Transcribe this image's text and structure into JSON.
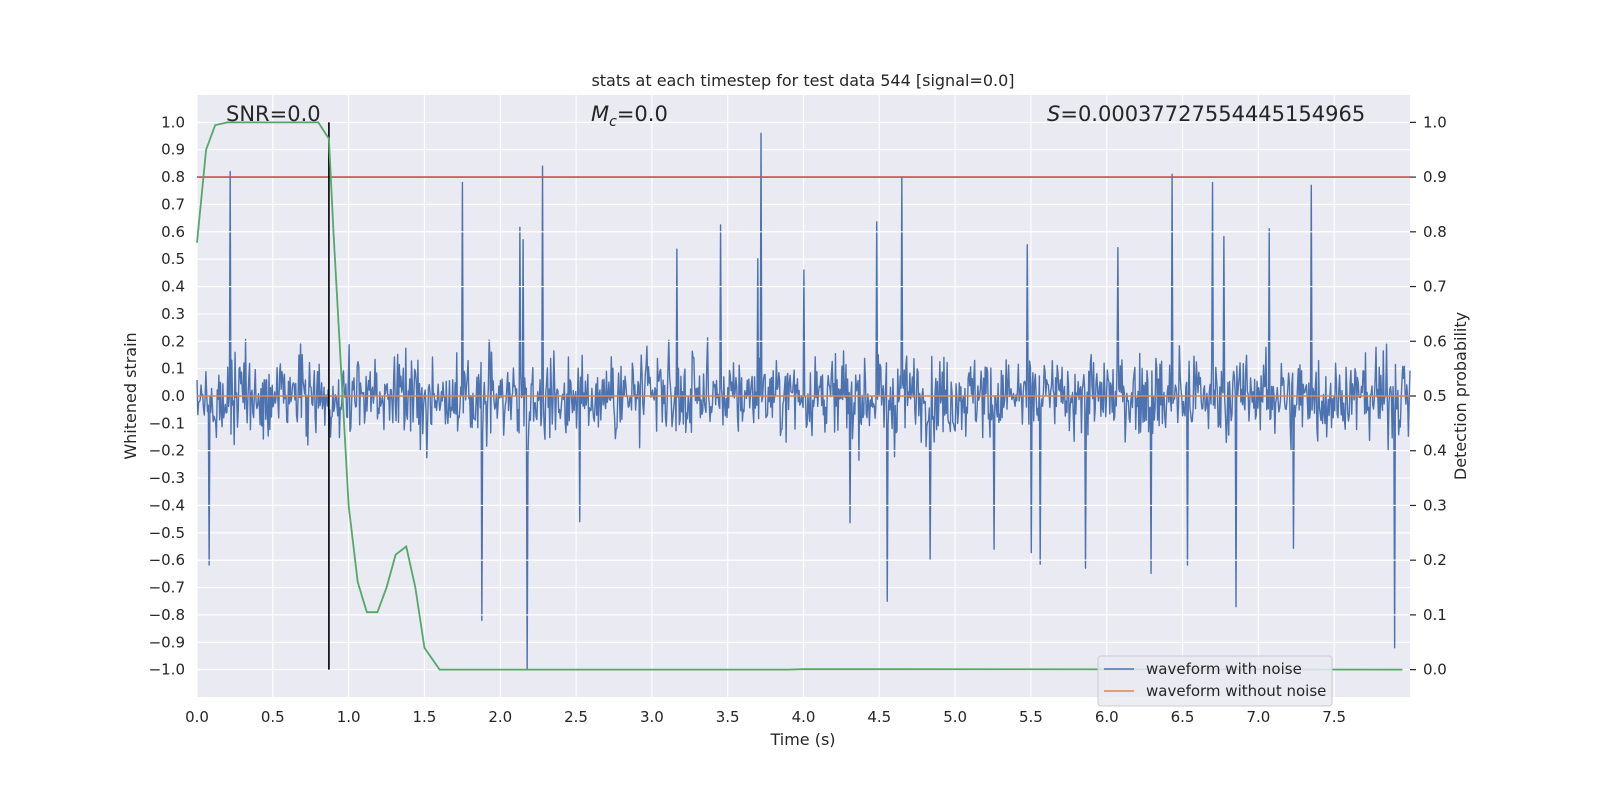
{
  "chart_data": {
    "type": "line",
    "title": "stats at each timestep for test data 544 [signal=0.0]",
    "xlabel": "Time (s)",
    "ylabel_left": "Whitened strain",
    "ylabel_right": "Detection probability",
    "xlim": [
      0.0,
      8.0
    ],
    "ylim_left": [
      -1.1,
      1.1
    ],
    "ylim_right": [
      -0.05,
      1.05
    ],
    "x_ticks": [
      "0.0",
      "0.5",
      "1.0",
      "1.5",
      "2.0",
      "2.5",
      "3.0",
      "3.5",
      "4.0",
      "4.5",
      "5.0",
      "5.5",
      "6.0",
      "6.5",
      "7.0",
      "7.5"
    ],
    "y_left_ticks": [
      "1.0",
      "0.9",
      "0.8",
      "0.7",
      "0.6",
      "0.5",
      "0.4",
      "0.3",
      "0.2",
      "0.1",
      "0.0",
      "−0.1",
      "−0.2",
      "−0.3",
      "−0.4",
      "−0.5",
      "−0.6",
      "−0.7",
      "−0.8",
      "−0.9",
      "−1.0"
    ],
    "y_right_ticks": [
      "1.0",
      "0.9",
      "0.8",
      "0.7",
      "0.6",
      "0.5",
      "0.4",
      "0.3",
      "0.2",
      "0.1",
      "0.0"
    ],
    "grid": true,
    "annotations": {
      "snr_label": "SNR=0.0",
      "mc_symbol": "M",
      "mc_subscript": "c",
      "mc_value": "=0.0",
      "s_symbol": "S",
      "s_value": "=0.00037727554445154965"
    },
    "detection_threshold": 0.9,
    "marker_time": 0.87,
    "series": [
      {
        "name": "waveform with noise",
        "axis": "left",
        "color": "#4c72b0",
        "description": "whitened noisy strain, dense noise band roughly within ±0.5",
        "notable_peaks": [
          {
            "x": 0.22,
            "y": 0.82
          },
          {
            "x": 2.28,
            "y": 0.84
          },
          {
            "x": 1.75,
            "y": 0.78
          },
          {
            "x": 3.72,
            "y": 0.96
          },
          {
            "x": 4.65,
            "y": 0.8
          },
          {
            "x": 6.43,
            "y": 0.81
          },
          {
            "x": 6.7,
            "y": 0.78
          },
          {
            "x": 7.35,
            "y": 0.77
          }
        ],
        "notable_troughs": [
          {
            "x": 1.88,
            "y": -0.82
          },
          {
            "x": 2.18,
            "y": -1.0
          },
          {
            "x": 4.55,
            "y": -0.75
          },
          {
            "x": 6.85,
            "y": -0.77
          },
          {
            "x": 7.9,
            "y": -0.92
          }
        ]
      },
      {
        "name": "waveform without noise",
        "axis": "left",
        "color": "#dd8452",
        "x": [
          0.0,
          8.0
        ],
        "y": [
          0.0,
          0.0
        ]
      },
      {
        "name": "detection probability",
        "axis": "right",
        "color": "#55a868",
        "x": [
          0.0,
          0.06,
          0.12,
          0.2,
          0.3,
          0.5,
          0.7,
          0.8,
          0.87,
          0.9,
          0.95,
          1.0,
          1.06,
          1.12,
          1.19,
          1.25,
          1.31,
          1.38,
          1.44,
          1.5,
          1.6,
          3.9,
          4.0,
          7.95
        ],
        "y": [
          0.78,
          0.95,
          0.995,
          1.0,
          1.0,
          1.0,
          1.0,
          1.0,
          0.97,
          0.8,
          0.55,
          0.3,
          0.16,
          0.105,
          0.105,
          0.15,
          0.21,
          0.225,
          0.15,
          0.04,
          0.0,
          0.0,
          0.001,
          0.0
        ]
      }
    ],
    "legend": {
      "location": "lower-right",
      "entries": [
        {
          "label": "waveform with noise",
          "color": "#4c72b0"
        },
        {
          "label": "waveform without noise",
          "color": "#dd8452"
        }
      ]
    }
  }
}
